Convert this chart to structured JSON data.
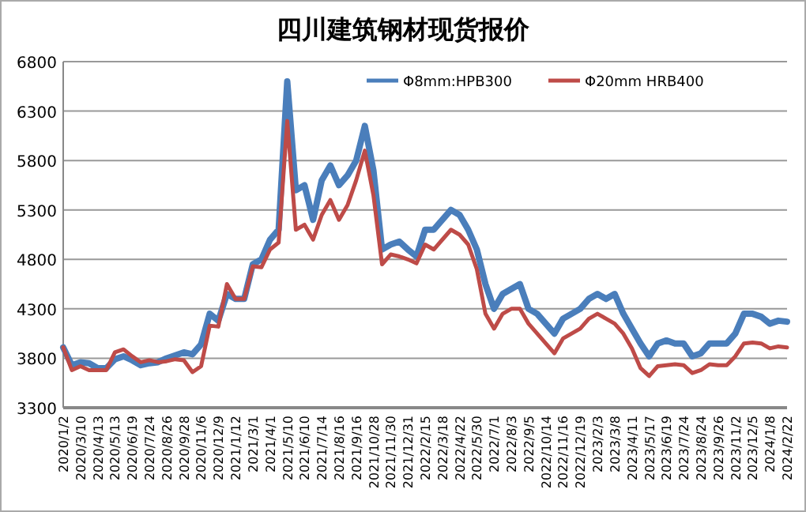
{
  "chart_data": {
    "type": "line",
    "title": "四川建筑钢材现货报价",
    "categories": [
      "2020/1/2",
      null,
      "2020/3/10",
      null,
      "2020/4/13",
      null,
      "2020/5/13",
      null,
      "2020/6/19",
      null,
      "2020/7/24",
      null,
      "2020/8/26",
      null,
      "2020/9/28",
      null,
      "2020/11/6",
      null,
      "2020/12/9",
      null,
      "2021/1/12",
      null,
      "2021/3/1",
      null,
      "2021/4/1",
      null,
      "2021/5/10",
      null,
      "2021/6/10",
      null,
      "2021/7/14",
      null,
      "2021/8/16",
      null,
      "2021/9/16",
      null,
      "2021/10/28",
      null,
      "2021/11/30",
      null,
      "2021/12/31",
      null,
      "2022/2/15",
      null,
      "2022/3/18",
      null,
      "2022/4/22",
      null,
      "2022/5/30",
      null,
      "2022/7/1",
      null,
      "2022/8/3",
      null,
      "2022/9/5",
      null,
      "2022/10/14",
      null,
      "2022/11/16",
      null,
      "2022/12/19",
      null,
      "2023/2/3",
      null,
      "2023/3/8",
      null,
      "2023/4/11",
      null,
      "2023/5/17",
      null,
      "2023/6/19",
      null,
      "2023/7/24",
      null,
      "2023/8/24",
      null,
      "2023/9/26",
      null,
      "2023/11/2",
      null,
      "2023/12/5",
      null,
      "2024/1/8",
      null,
      "2024/2/22"
    ],
    "series": [
      {
        "name": "Φ8mm:HPB300",
        "color": "#4a7ebb",
        "values": [
          3910,
          3730,
          3760,
          3750,
          3700,
          3700,
          3790,
          3820,
          3780,
          3730,
          3750,
          3760,
          3800,
          3830,
          3860,
          3840,
          3940,
          4250,
          4180,
          4450,
          4400,
          4400,
          4750,
          4800,
          5000,
          5100,
          6600,
          5500,
          5550,
          5200,
          5600,
          5750,
          5550,
          5650,
          5800,
          6150,
          5700,
          4900,
          4950,
          4980,
          4900,
          4830,
          5100,
          5100,
          5200,
          5300,
          5250,
          5100,
          4900,
          4550,
          4300,
          4450,
          4500,
          4550,
          4300,
          4250,
          4150,
          4050,
          4200,
          4250,
          4300,
          4400,
          4450,
          4400,
          4450,
          4250,
          4100,
          3950,
          3820,
          3950,
          3980,
          3950,
          3950,
          3820,
          3850,
          3950,
          3950,
          3950,
          4050,
          4250,
          4250,
          4220,
          4150,
          4180,
          4170
        ]
      },
      {
        "name": "Φ20mm HRB400",
        "color": "#be4b48",
        "values": [
          3910,
          3680,
          3720,
          3680,
          3680,
          3680,
          3860,
          3890,
          3820,
          3760,
          3780,
          3760,
          3770,
          3790,
          3780,
          3660,
          3720,
          4130,
          4120,
          4550,
          4400,
          4400,
          4730,
          4720,
          4900,
          4970,
          6200,
          5100,
          5150,
          5000,
          5250,
          5400,
          5200,
          5350,
          5600,
          5900,
          5450,
          4750,
          4850,
          4830,
          4800,
          4760,
          4950,
          4900,
          5000,
          5100,
          5050,
          4950,
          4700,
          4250,
          4100,
          4250,
          4300,
          4300,
          4150,
          4050,
          3950,
          3850,
          4000,
          4050,
          4100,
          4200,
          4250,
          4200,
          4150,
          4050,
          3900,
          3700,
          3620,
          3720,
          3730,
          3740,
          3730,
          3650,
          3680,
          3740,
          3730,
          3730,
          3820,
          3950,
          3960,
          3950,
          3900,
          3920,
          3910
        ]
      }
    ],
    "ylim": [
      3300,
      6800
    ],
    "yticks": [
      3300,
      3800,
      4300,
      4800,
      5300,
      5800,
      6300,
      6800
    ],
    "grid": "y",
    "legend": "top right",
    "marker": "none",
    "line_style": "solid"
  }
}
